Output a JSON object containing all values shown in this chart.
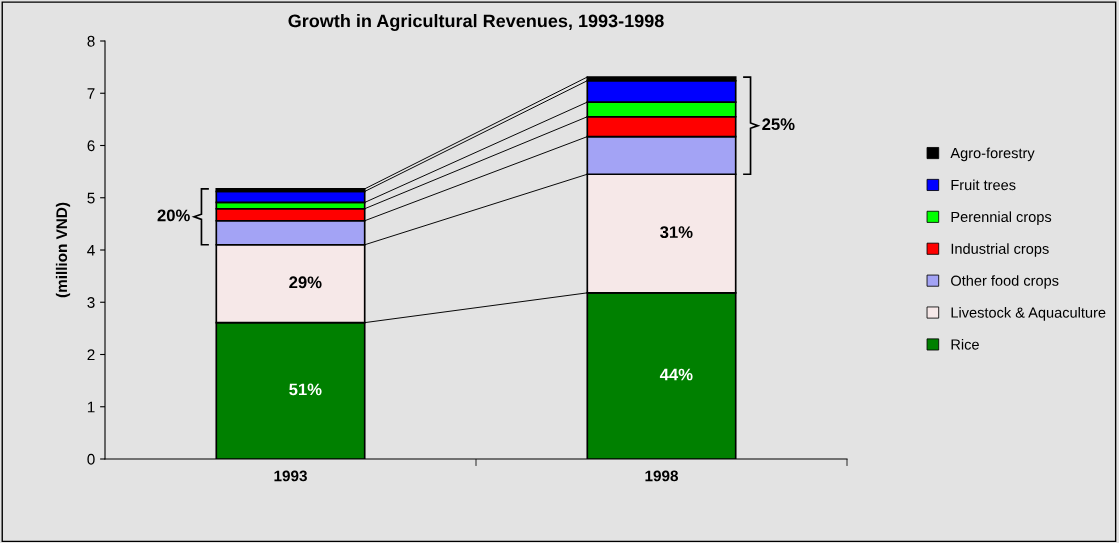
{
  "chart_data": {
    "type": "bar",
    "title": "Growth in Agricultural Revenues, 1993-1998",
    "ylabel": "(million VND)",
    "categories": [
      "1993",
      "1998"
    ],
    "stacked": true,
    "series": [
      {
        "name": "Rice",
        "color": "#008000",
        "values": [
          2.61,
          3.18
        ]
      },
      {
        "name": "Livestock & Aquaculture",
        "color": "#f6e8e8",
        "values": [
          1.49,
          2.27
        ]
      },
      {
        "name": "Other food crops",
        "color": "#a3a3f5",
        "values": [
          0.46,
          0.72
        ]
      },
      {
        "name": "Industrial crops",
        "color": "#ff0000",
        "values": [
          0.23,
          0.38
        ]
      },
      {
        "name": "Perennial crops",
        "color": "#00ff00",
        "values": [
          0.12,
          0.28
        ]
      },
      {
        "name": "Fruit trees",
        "color": "#0000ff",
        "values": [
          0.21,
          0.41
        ]
      },
      {
        "name": "Agro-forestry",
        "color": "#000000",
        "values": [
          0.05,
          0.07
        ]
      }
    ],
    "ylim": [
      0,
      8
    ],
    "yticks": [
      0,
      1,
      2,
      3,
      4,
      5,
      6,
      7,
      8
    ],
    "grid": false,
    "legend": "right",
    "annotations": [
      "51%",
      "29%",
      "20%",
      "44%",
      "31%",
      "25%"
    ]
  }
}
